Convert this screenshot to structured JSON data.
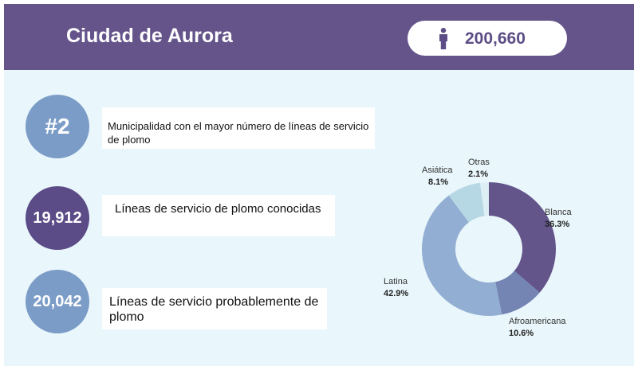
{
  "header": {
    "title": "Ciudad de Aurora",
    "population": "200,660",
    "population_icon": "person-icon"
  },
  "stats": [
    {
      "value": "#2",
      "label": "Municipalidad con el mayor número de líneas de servicio de plomo"
    },
    {
      "value": "19,912",
      "label": "Líneas de servicio de plomo conocidas"
    },
    {
      "value": "20,042",
      "label": "Líneas de servicio probablemente de plomo"
    }
  ],
  "chart_data": {
    "type": "pie",
    "title": "",
    "slices": [
      {
        "label": "Blanca",
        "value": 36.3,
        "display": "36.3%",
        "color": "#63548a"
      },
      {
        "label": "Afroamericana",
        "value": 10.6,
        "display": "10.6%",
        "color": "#7485b3"
      },
      {
        "label": "Latina",
        "value": 42.9,
        "display": "42.9%",
        "color": "#92aed2"
      },
      {
        "label": "Asiática",
        "value": 8.1,
        "display": "8.1%",
        "color": "#b6d7e4"
      },
      {
        "label": "Otras",
        "value": 2.1,
        "display": "2.1%",
        "color": "#ddeef5"
      }
    ]
  },
  "colors": {
    "header_bg": "#64548a",
    "panel_bg": "#e9f6fb",
    "accent_purple": "#5b4b87",
    "accent_blue": "#7b9cc7"
  }
}
